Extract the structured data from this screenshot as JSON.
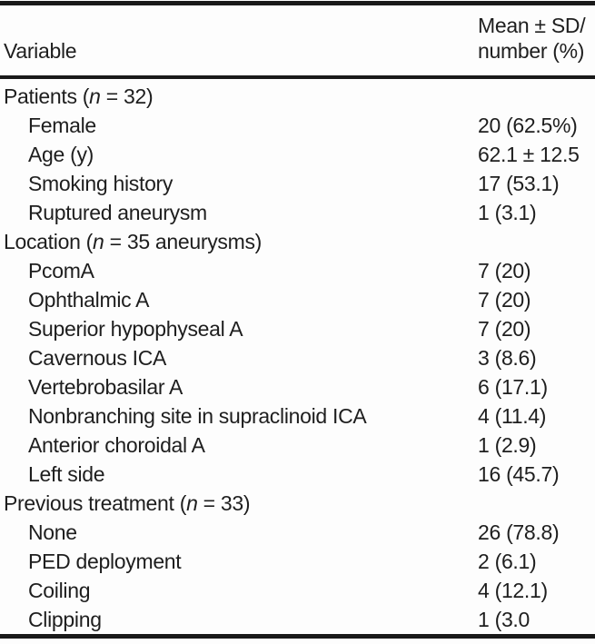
{
  "table": {
    "header": {
      "col_variable": "Variable",
      "col_value_line1": "Mean ± SD/",
      "col_value_line2": "number (%)"
    },
    "rows": [
      {
        "type": "section",
        "parts": [
          {
            "t": "Patients ("
          },
          {
            "t": "n",
            "i": true
          },
          {
            "t": " = 32)"
          }
        ],
        "value": ""
      },
      {
        "type": "item",
        "label": "Female",
        "value": "20 (62.5%)"
      },
      {
        "type": "item",
        "label": "Age (y)",
        "value": "62.1 ± 12.5"
      },
      {
        "type": "item",
        "label": "Smoking history",
        "value": "17 (53.1)"
      },
      {
        "type": "item",
        "label": "Ruptured aneurysm",
        "value": "1 (3.1)"
      },
      {
        "type": "section",
        "parts": [
          {
            "t": "Location ("
          },
          {
            "t": "n",
            "i": true
          },
          {
            "t": " = 35 aneurysms)"
          }
        ],
        "value": ""
      },
      {
        "type": "item",
        "label": "PcomA",
        "value": "7 (20)"
      },
      {
        "type": "item",
        "label": "Ophthalmic A",
        "value": "7 (20)"
      },
      {
        "type": "item",
        "label": "Superior hypophyseal A",
        "value": "7 (20)"
      },
      {
        "type": "item",
        "label": "Cavernous ICA",
        "value": "3 (8.6)"
      },
      {
        "type": "item",
        "label": "Vertebrobasilar A",
        "value": "6 (17.1)"
      },
      {
        "type": "item",
        "label": "Nonbranching site in supraclinoid ICA",
        "value": "4 (11.4)"
      },
      {
        "type": "item",
        "label": "Anterior choroidal A",
        "value": "1 (2.9)"
      },
      {
        "type": "item",
        "label": "Left side",
        "value": "16 (45.7)"
      },
      {
        "type": "section",
        "parts": [
          {
            "t": "Previous treatment ("
          },
          {
            "t": "n",
            "i": true
          },
          {
            "t": " = 33)"
          }
        ],
        "value": ""
      },
      {
        "type": "item",
        "label": "None",
        "value": "26 (78.8)"
      },
      {
        "type": "item",
        "label": "PED deployment",
        "value": "2 (6.1)"
      },
      {
        "type": "item",
        "label": "Coiling",
        "value": "4 (12.1)"
      },
      {
        "type": "item",
        "label": "Clipping",
        "value": "1 (3.0"
      }
    ]
  },
  "colors": {
    "text": "#1e1e1e",
    "rule": "#191919",
    "background": "#fdfdfd"
  }
}
